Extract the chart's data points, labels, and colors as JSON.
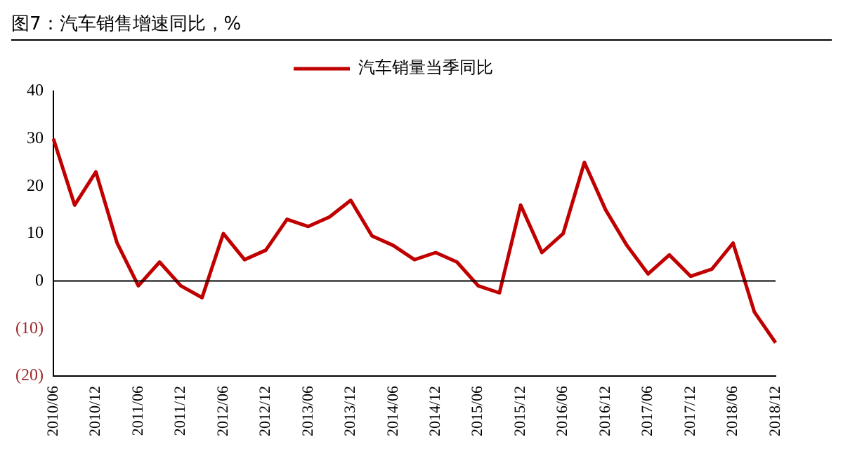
{
  "chart_data": {
    "type": "line",
    "title": "图7：汽车销售增速同比，%",
    "categories": [
      "2010/06",
      null,
      "2010/12",
      null,
      "2011/06",
      null,
      "2011/12",
      null,
      "2012/06",
      null,
      "2012/12",
      null,
      "2013/06",
      null,
      "2013/12",
      null,
      "2014/06",
      null,
      "2014/12",
      null,
      "2015/06",
      null,
      "2015/12",
      null,
      "2016/06",
      null,
      "2016/12",
      null,
      "2017/06",
      null,
      "2017/12",
      null,
      "2018/06",
      null,
      "2018/12"
    ],
    "series": [
      {
        "name": "汽车销量当季同比",
        "color": "#c00000",
        "values": [
          30,
          16,
          23,
          8,
          -1,
          4,
          -1,
          -3.5,
          10,
          4.5,
          6.5,
          13,
          11.5,
          13.5,
          17,
          9.5,
          7.5,
          4.5,
          6,
          4,
          -1,
          -2.5,
          16,
          6,
          10,
          25,
          15,
          7.5,
          1.5,
          5.5,
          1,
          2.5,
          8,
          -6.5,
          -13
        ]
      }
    ],
    "ylim": [
      -20,
      40
    ],
    "yticks": [
      {
        "value": -20,
        "label": "(20)"
      },
      {
        "value": -10,
        "label": "(10)"
      },
      0,
      10,
      20,
      30,
      40
    ],
    "ref_lines": [
      {
        "axis": "y",
        "value": 0,
        "color": "#000000"
      }
    ],
    "legend": "top",
    "marker": "none",
    "line_style": "solid"
  }
}
